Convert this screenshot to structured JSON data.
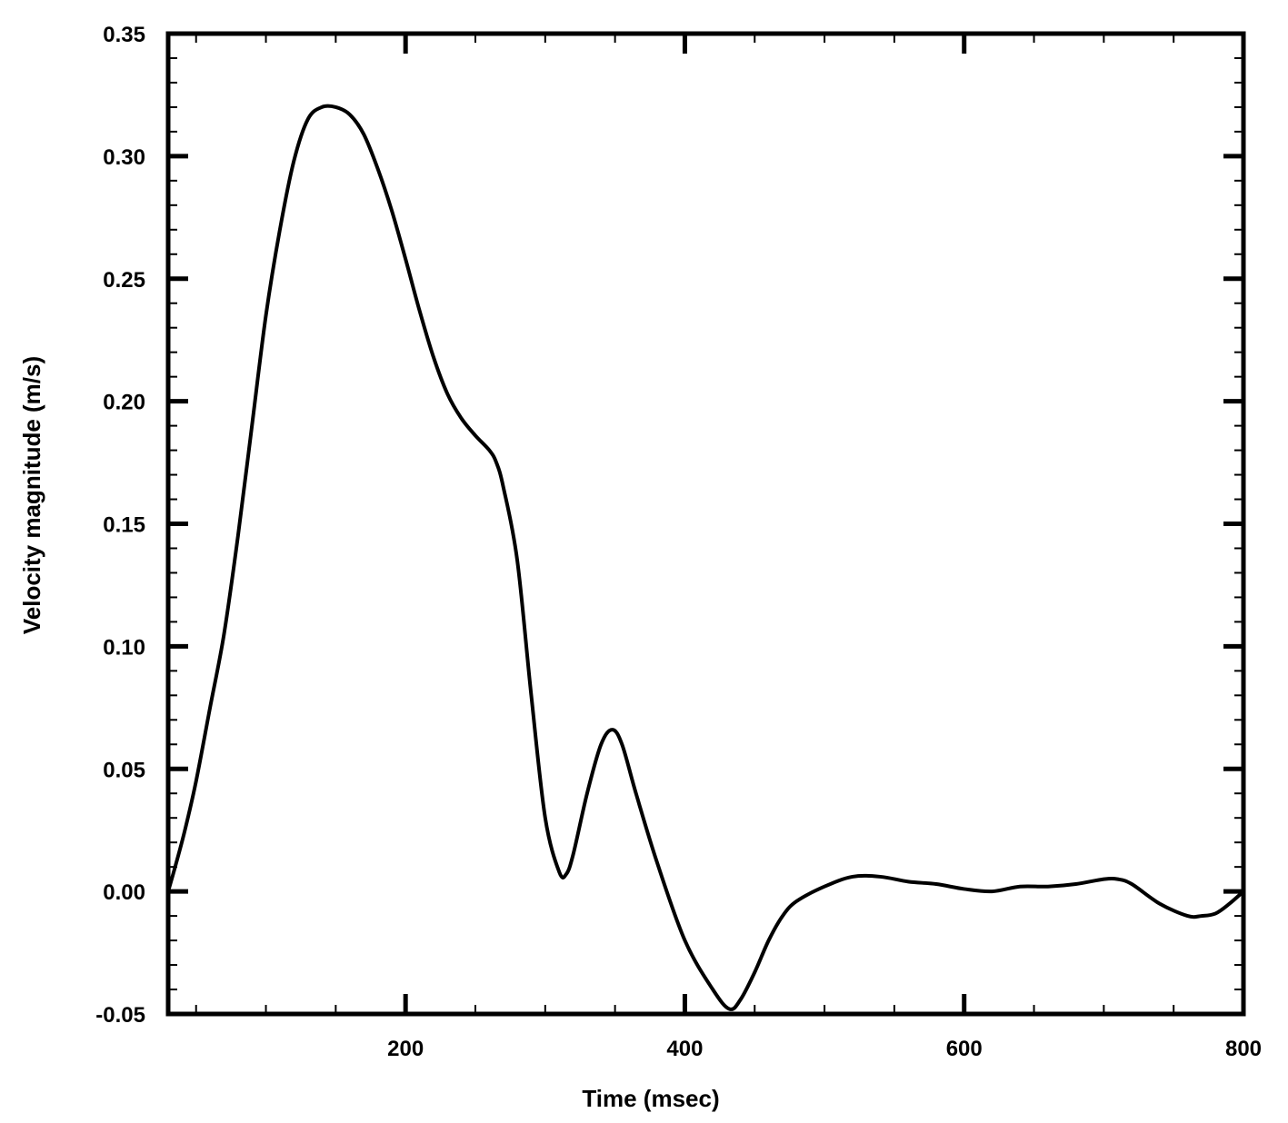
{
  "chart_data": {
    "type": "line",
    "title": "",
    "xlabel": "Time (msec)",
    "ylabel": "Velocity magnitude (m/s)",
    "xlim": [
      30,
      800
    ],
    "ylim": [
      -0.05,
      0.35
    ],
    "xticks": [
      200,
      400,
      600,
      800
    ],
    "xtick_labels": [
      "200",
      "400",
      "600",
      "800"
    ],
    "yticks": [
      -0.05,
      0.0,
      0.05,
      0.1,
      0.15,
      0.2,
      0.25,
      0.3,
      0.35
    ],
    "ytick_labels": [
      "-0.05",
      "0.00",
      "0.05",
      "0.10",
      "0.15",
      "0.20",
      "0.25",
      "0.30",
      "0.35"
    ],
    "grid": false,
    "line_color": "#000000",
    "axis_title_color": "#8B5A2B",
    "series": [
      {
        "x": [
          30,
          35,
          42,
          50,
          60,
          70,
          80,
          90,
          100,
          110,
          120,
          130,
          140,
          150,
          160,
          170,
          180,
          190,
          200,
          210,
          220,
          230,
          240,
          250,
          260,
          265,
          270,
          280,
          290,
          300,
          310,
          315,
          320,
          330,
          340,
          348,
          355,
          365,
          380,
          400,
          420,
          432,
          440,
          450,
          460,
          470,
          480,
          500,
          520,
          540,
          560,
          580,
          600,
          620,
          640,
          660,
          680,
          700,
          710,
          720,
          740,
          760,
          770,
          780,
          790,
          800
        ],
        "y": [
          0.0,
          0.01,
          0.025,
          0.045,
          0.075,
          0.105,
          0.145,
          0.19,
          0.235,
          0.27,
          0.298,
          0.315,
          0.32,
          0.32,
          0.317,
          0.309,
          0.295,
          0.278,
          0.258,
          0.237,
          0.218,
          0.203,
          0.193,
          0.186,
          0.18,
          0.175,
          0.165,
          0.135,
          0.08,
          0.03,
          0.008,
          0.007,
          0.015,
          0.04,
          0.06,
          0.066,
          0.06,
          0.04,
          0.012,
          -0.02,
          -0.04,
          -0.048,
          -0.044,
          -0.033,
          -0.02,
          -0.01,
          -0.004,
          0.002,
          0.006,
          0.006,
          0.004,
          0.003,
          0.001,
          0.0,
          0.002,
          0.002,
          0.003,
          0.005,
          0.005,
          0.003,
          -0.005,
          -0.01,
          -0.01,
          -0.009,
          -0.005,
          0.0
        ]
      }
    ]
  }
}
